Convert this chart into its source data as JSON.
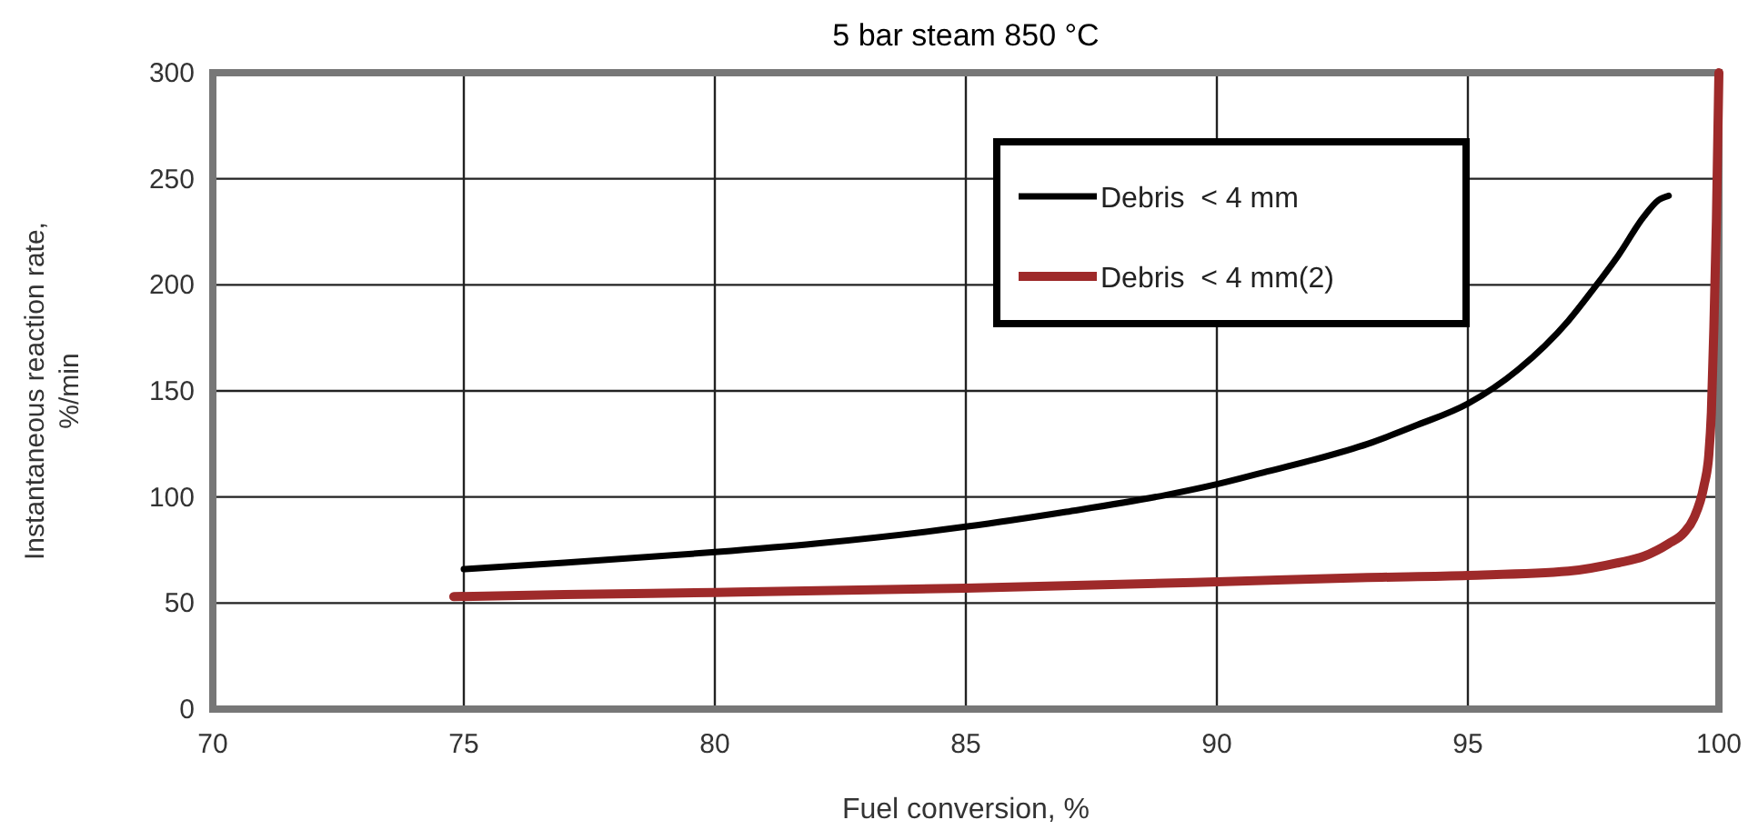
{
  "chart_data": {
    "type": "line",
    "title": "5 bar steam 850 °C",
    "xlabel": "Fuel conversion, %",
    "ylabel": "Instantaneous reaction rate, %/min",
    "xlim": [
      70,
      100
    ],
    "xticks": [
      70,
      75,
      80,
      85,
      90,
      95,
      100
    ],
    "ylim": [
      0,
      300
    ],
    "yticks": [
      0,
      50,
      100,
      150,
      200,
      250,
      300
    ],
    "grid": true,
    "legend": "top right",
    "line_style": "solid",
    "series": [
      {
        "name": "Debris  < 4 mm",
        "color": "#000000",
        "x": [
          75,
          77,
          80,
          82,
          85,
          87,
          89,
          90,
          91,
          92,
          93,
          94,
          95,
          96,
          97,
          97.5,
          98,
          98.5,
          98.8,
          99
        ],
        "values": [
          66,
          69,
          74,
          78,
          86,
          93,
          101,
          106,
          112,
          118,
          125,
          134,
          144,
          160,
          183,
          198,
          214,
          232,
          240,
          242
        ]
      },
      {
        "name": "Debris  < 4 mm(2)",
        "color": "#9e2a2a",
        "x": [
          74.8,
          77,
          80,
          85,
          90,
          93,
          95,
          97,
          98,
          98.5,
          99,
          99.3,
          99.5,
          99.7,
          99.8,
          99.85,
          99.9,
          99.95,
          100
        ],
        "values": [
          53,
          54,
          55,
          57,
          60,
          62,
          63,
          65,
          69,
          72,
          78,
          83,
          90,
          105,
          120,
          140,
          180,
          230,
          300
        ]
      }
    ]
  }
}
